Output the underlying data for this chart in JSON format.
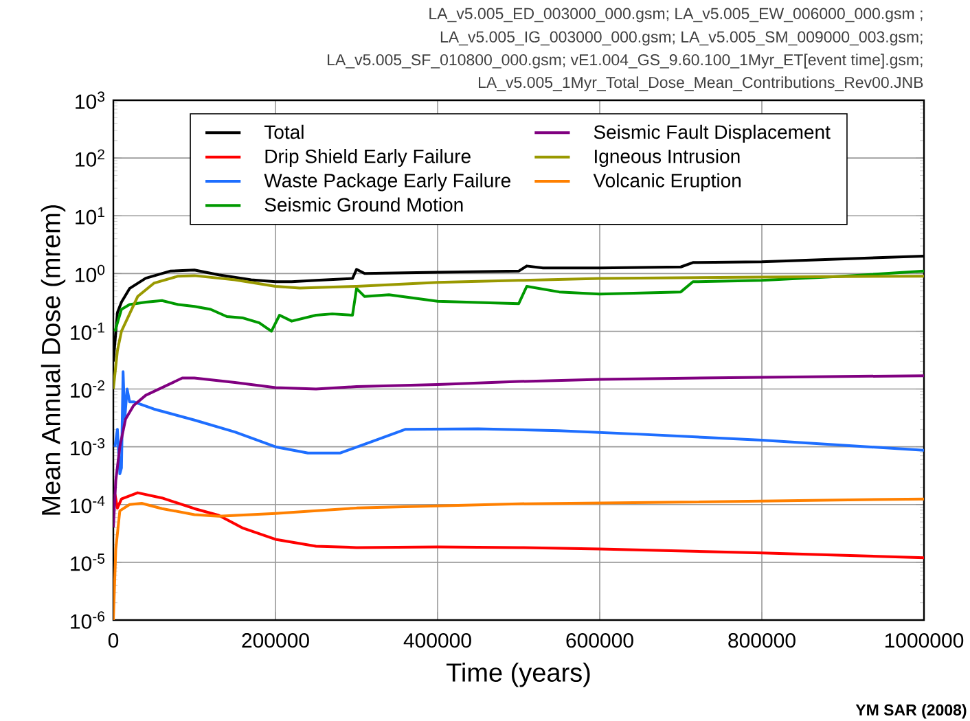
{
  "chart_data": {
    "type": "line",
    "xlabel": "Time (years)",
    "ylabel": "Mean Annual Dose (mrem)",
    "annotations": [
      "LA_v5.005_ED_003000_000.gsm; LA_v5.005_EW_006000_000.gsm ;",
      "LA_v5.005_IG_003000_000.gsm; LA_v5.005_SM_009000_003.gsm;",
      "LA_v5.005_SF_010800_000.gsm; vE1.004_GS_9.60.100_1Myr_ET[event time].gsm;",
      "LA_v5.005_1Myr_Total_Dose_Mean_Contributions_Rev00.JNB",
      "**YM SAR (2008)**"
    ],
    "xlim": [
      0,
      1000000
    ],
    "xticks": [
      0,
      200000,
      400000,
      600000,
      800000,
      1000000
    ],
    "ylim": [
      1e-06,
      1000
    ],
    "log": "y",
    "yticks": [
      {
        "value": 1e-06,
        "label": "10$^{-6}$"
      },
      {
        "value": 1e-05,
        "label": "10$^{-5}$"
      },
      {
        "value": 0.0001,
        "label": "10$^{-4}$"
      },
      {
        "value": 0.001,
        "label": "10$^{-3}$"
      },
      {
        "value": 0.01,
        "label": "10$^{-2}$"
      },
      {
        "value": 0.1,
        "label": "10$^{-1}$"
      },
      {
        "value": 1,
        "label": "10$^{0}$"
      },
      {
        "value": 10,
        "label": "10$^{1}$"
      },
      {
        "value": 100,
        "label": "10$^{2}$"
      },
      {
        "value": 1000,
        "label": "10$^{3}$"
      }
    ],
    "grid": true,
    "legend": "top",
    "marker": "none",
    "line_style": "solid",
    "series": [
      {
        "name": "Total",
        "color": "#000000",
        "x": [
          0,
          5000,
          10000,
          20000,
          40000,
          70000,
          100000,
          130000,
          170000,
          200000,
          220000,
          250000,
          295000,
          300000,
          310000,
          400000,
          500000,
          510000,
          530000,
          600000,
          700000,
          715000,
          800000,
          1000000
        ],
        "values": [
          0.03,
          0.21,
          0.32,
          0.55,
          0.83,
          1.1,
          1.15,
          0.95,
          0.78,
          0.72,
          0.72,
          0.76,
          0.82,
          1.18,
          1.0,
          1.05,
          1.1,
          1.35,
          1.25,
          1.25,
          1.3,
          1.55,
          1.6,
          2.0
        ]
      },
      {
        "name": "Drip Shield Early Failure",
        "color": "#ff0000",
        "x": [
          2000,
          5000,
          10000,
          30000,
          60000,
          100000,
          130000,
          160000,
          200000,
          250000,
          300000,
          400000,
          500000,
          600000,
          800000,
          1000000
        ],
        "values": [
          0.00015,
          8.7e-05,
          0.000125,
          0.00016,
          0.00013,
          8.5e-05,
          6.5e-05,
          3.9e-05,
          2.5e-05,
          1.9e-05,
          1.8e-05,
          1.85e-05,
          1.8e-05,
          1.7e-05,
          1.45e-05,
          1.2e-05
        ]
      },
      {
        "name": "Waste Package Early Failure",
        "color": "#1e6eff",
        "x": [
          2000,
          5000,
          8000,
          10000,
          12000,
          14000,
          17000,
          20000,
          25000,
          50000,
          100000,
          150000,
          200000,
          240000,
          280000,
          320000,
          360000,
          450000,
          550000,
          650000,
          800000,
          1000000
        ],
        "values": [
          0.001,
          0.002,
          0.00034,
          0.00043,
          0.02,
          0.003,
          0.01,
          0.006,
          0.006,
          0.0045,
          0.0029,
          0.0018,
          0.001,
          0.00078,
          0.00078,
          0.00125,
          0.002,
          0.00205,
          0.0019,
          0.00165,
          0.0013,
          0.00087
        ]
      },
      {
        "name": "Seismic Ground Motion",
        "color": "#009900",
        "x": [
          2000,
          5000,
          10000,
          20000,
          40000,
          60000,
          80000,
          100000,
          120000,
          140000,
          160000,
          180000,
          195000,
          205000,
          220000,
          250000,
          270000,
          295000,
          300000,
          310000,
          340000,
          400000,
          500000,
          510000,
          550000,
          600000,
          700000,
          715000,
          800000,
          900000,
          1000000
        ],
        "values": [
          0.1,
          0.14,
          0.24,
          0.29,
          0.32,
          0.34,
          0.29,
          0.27,
          0.24,
          0.18,
          0.17,
          0.14,
          0.1,
          0.19,
          0.15,
          0.19,
          0.2,
          0.19,
          0.55,
          0.4,
          0.43,
          0.33,
          0.3,
          0.6,
          0.48,
          0.44,
          0.48,
          0.72,
          0.76,
          0.9,
          1.1
        ]
      },
      {
        "name": "Seismic Fault Displacement",
        "color": "#800080",
        "x": [
          0,
          3000,
          8000,
          15000,
          25000,
          40000,
          85000,
          100000,
          150000,
          200000,
          250000,
          300000,
          400000,
          500000,
          600000,
          800000,
          1000000
        ],
        "values": [
          4e-05,
          0.00026,
          0.001,
          0.003,
          0.0052,
          0.0078,
          0.0155,
          0.0155,
          0.013,
          0.0106,
          0.01,
          0.011,
          0.012,
          0.0135,
          0.0147,
          0.016,
          0.017
        ]
      },
      {
        "name": "Igneous Intrusion",
        "color": "#999900",
        "x": [
          0,
          5000,
          10000,
          20000,
          30000,
          50000,
          80000,
          100000,
          150000,
          200000,
          230000,
          300000,
          400000,
          500000,
          600000,
          800000,
          1000000
        ],
        "values": [
          0.01,
          0.046,
          0.1,
          0.2,
          0.4,
          0.68,
          0.9,
          0.92,
          0.78,
          0.6,
          0.56,
          0.6,
          0.7,
          0.76,
          0.82,
          0.87,
          0.9
        ]
      },
      {
        "name": "Volcanic Eruption",
        "color": "#ff8000",
        "x": [
          0,
          3000,
          8000,
          20000,
          35000,
          60000,
          100000,
          130000,
          200000,
          300000,
          400000,
          500000,
          700000,
          1000000
        ],
        "values": [
          1e-06,
          1.7e-05,
          7.8e-05,
          0.0001,
          0.000105,
          8.5e-05,
          6.7e-05,
          6.3e-05,
          7e-05,
          8.7e-05,
          9.5e-05,
          0.000103,
          0.00011,
          0.000125
        ]
      }
    ]
  }
}
